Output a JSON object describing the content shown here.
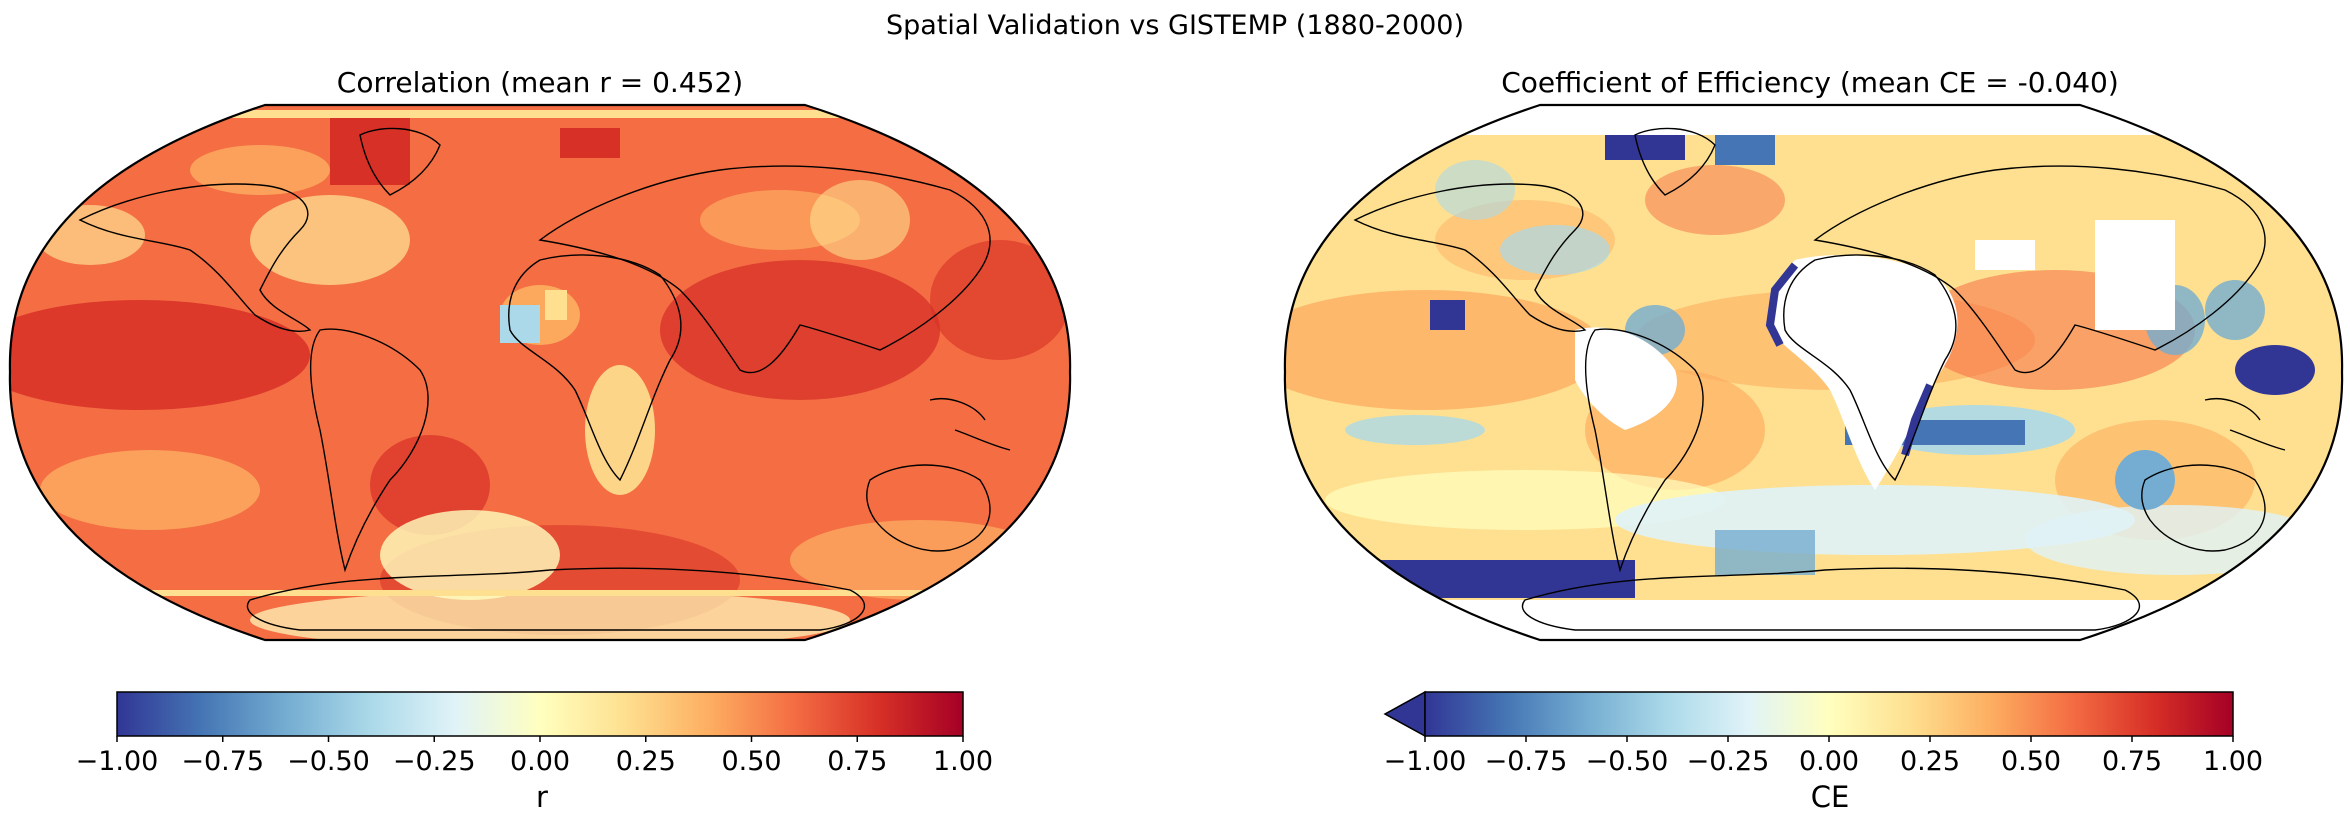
{
  "suptitle": "Spatial Validation vs GISTEMP (1880-2000)",
  "panels": [
    {
      "title": "Correlation (mean r = 0.452)",
      "variable": "r",
      "mean_value": 0.452,
      "colorbar": {
        "cmap": "RdYlBu_r",
        "range": [
          -1.0,
          1.0
        ],
        "ticks": [
          "−1.00",
          "−0.75",
          "−0.50",
          "−0.25",
          "0.00",
          "0.25",
          "0.50",
          "0.75",
          "1.00"
        ],
        "label": "r",
        "extend": "neither"
      }
    },
    {
      "title": "Coefficient of Efficiency (mean CE = -0.040)",
      "variable": "CE",
      "mean_value": -0.04,
      "colorbar": {
        "cmap": "RdYlBu_r",
        "range": [
          -1.0,
          1.0
        ],
        "ticks": [
          "−1.00",
          "−0.75",
          "−0.50",
          "−0.25",
          "0.00",
          "0.25",
          "0.50",
          "0.75",
          "1.00"
        ],
        "label": "CE",
        "extend": "min"
      }
    }
  ],
  "colors": {
    "cmap_stops": [
      "#313695",
      "#4575b4",
      "#74add1",
      "#abd9e9",
      "#e0f3f8",
      "#ffffbf",
      "#fee090",
      "#fdae61",
      "#f46d43",
      "#d73027",
      "#a50026"
    ],
    "no_data": "#ffffff",
    "coastline": "#000000"
  }
}
